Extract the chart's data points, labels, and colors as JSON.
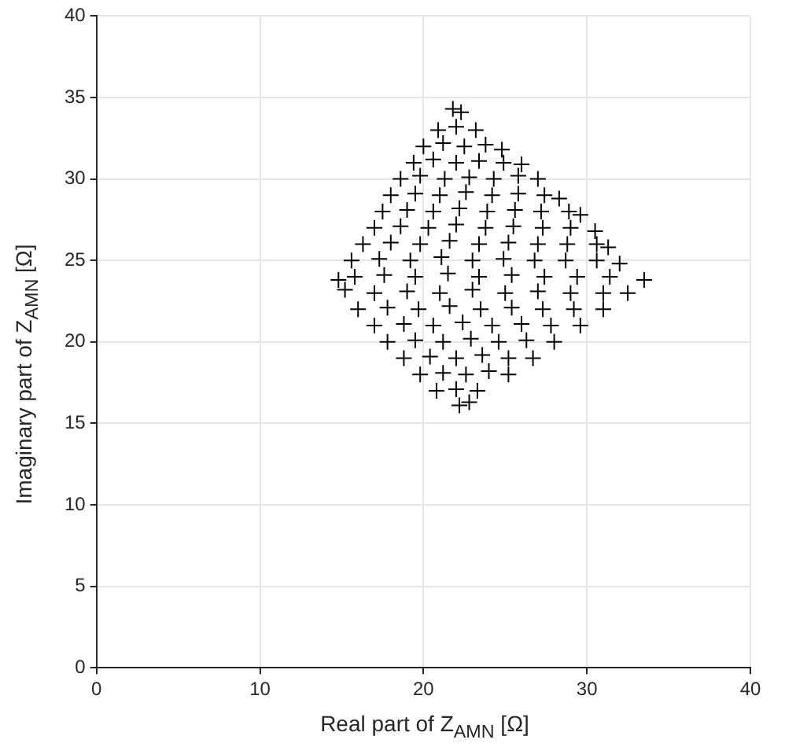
{
  "chart_data": {
    "type": "scatter",
    "xlabel": "Real part of Z$_{AMN}$ [Ω]",
    "ylabel": "Imaginary part of Z$_{AMN}$ [Ω]",
    "x": [
      21.8,
      22.3,
      20.9,
      22.0,
      23.2,
      20.0,
      21.2,
      22.5,
      23.8,
      24.8,
      19.4,
      20.6,
      22.0,
      23.4,
      24.9,
      26.0,
      18.6,
      19.8,
      21.3,
      22.8,
      24.3,
      25.8,
      27.0,
      18.0,
      19.5,
      21.0,
      22.6,
      24.2,
      25.8,
      27.4,
      28.3,
      17.5,
      19.0,
      20.6,
      22.2,
      23.9,
      25.6,
      27.2,
      28.9,
      29.6,
      17.0,
      18.6,
      20.3,
      22.0,
      23.8,
      25.5,
      27.3,
      29.0,
      30.5,
      16.3,
      18.0,
      19.8,
      21.6,
      23.4,
      25.2,
      27.0,
      28.8,
      30.6,
      31.3,
      15.6,
      17.3,
      19.2,
      21.1,
      23.0,
      24.9,
      26.8,
      28.7,
      30.6,
      32.0,
      14.8,
      15.8,
      17.6,
      19.5,
      21.5,
      23.4,
      25.4,
      27.4,
      29.4,
      31.4,
      33.5,
      15.2,
      17.0,
      19.0,
      21.0,
      23.0,
      25.0,
      27.0,
      29.0,
      31.0,
      32.5,
      16.0,
      17.8,
      19.7,
      21.6,
      23.5,
      25.4,
      27.3,
      29.2,
      31.0,
      17.0,
      18.8,
      20.6,
      22.4,
      24.2,
      26.0,
      27.8,
      29.6,
      17.8,
      19.5,
      21.2,
      22.9,
      24.6,
      26.3,
      28.0,
      18.8,
      20.4,
      22.0,
      23.6,
      25.2,
      26.7,
      19.8,
      21.2,
      22.6,
      24.0,
      25.2,
      20.8,
      22.0,
      23.3,
      22.2,
      22.8
    ],
    "values": [
      34.3,
      34.1,
      33,
      33.2,
      33,
      32,
      32.2,
      32,
      32.1,
      31.8,
      31,
      31.2,
      31,
      31.1,
      31,
      30.9,
      30,
      30.2,
      30,
      30.1,
      30,
      30.2,
      30,
      29,
      29.1,
      29,
      29.2,
      29,
      29.1,
      29,
      28.8,
      28,
      28.1,
      28,
      28.2,
      28,
      28.1,
      28,
      28,
      27.8,
      27,
      27.1,
      27,
      27.2,
      27,
      27.1,
      27,
      27,
      26.8,
      26,
      26.1,
      26,
      26.2,
      26,
      26.1,
      26,
      26,
      26,
      25.8,
      25,
      25.1,
      25,
      25.2,
      25,
      25.1,
      25,
      25,
      25,
      24.8,
      23.8,
      24,
      24.1,
      24,
      24.2,
      24,
      24.1,
      24,
      24,
      24,
      23.8,
      23.2,
      23,
      23.1,
      23,
      23.2,
      23,
      23.1,
      23,
      23,
      23,
      22,
      22.1,
      22,
      22.2,
      22,
      22.1,
      22,
      22,
      22,
      21,
      21.1,
      21,
      21.2,
      21,
      21.1,
      21,
      21,
      20,
      20.1,
      20,
      20.2,
      20,
      20.1,
      20,
      19,
      19.1,
      19,
      19.2,
      19,
      19,
      18,
      18.1,
      18,
      18.2,
      18,
      17,
      17.1,
      17,
      16.1,
      16.3
    ],
    "color": "#000000",
    "marker": "cross",
    "xlim": [
      0,
      40
    ],
    "ylim": [
      0,
      40
    ],
    "xticks": [
      0,
      10,
      20,
      30,
      40
    ],
    "yticks": [
      0,
      5,
      10,
      15,
      20,
      25,
      30,
      35,
      40
    ],
    "grid": true,
    "legend": false
  }
}
